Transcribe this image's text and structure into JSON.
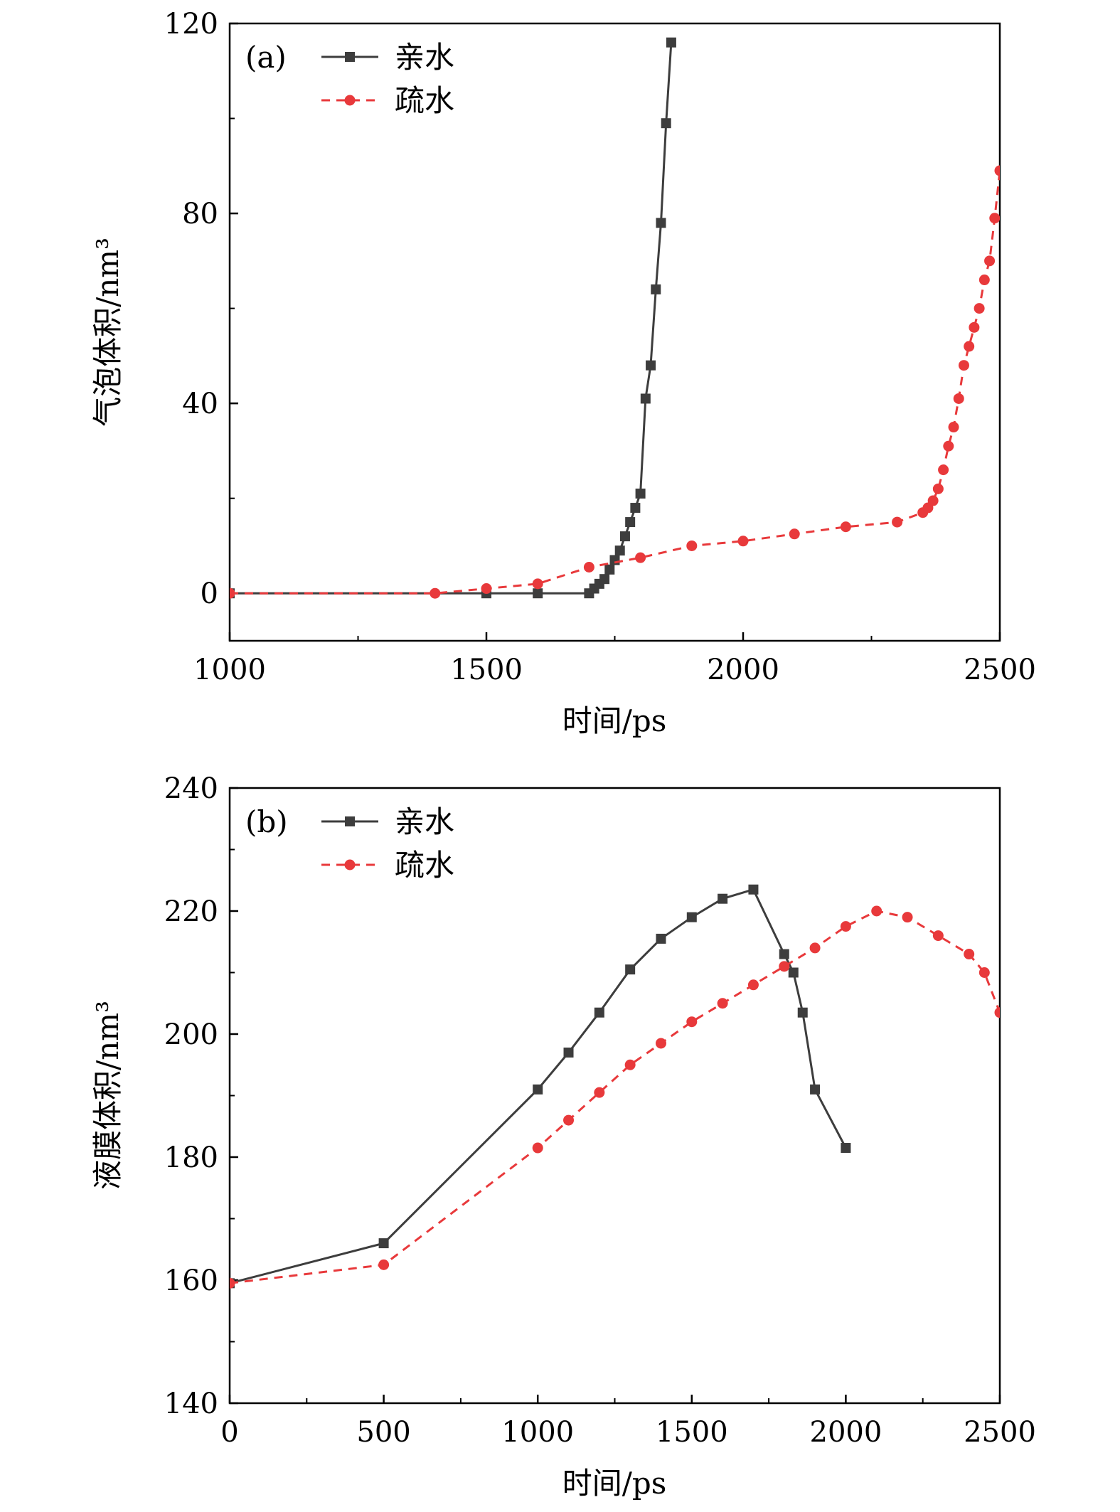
{
  "colors": {
    "hydrophilic": "#3d3d3d",
    "hydrophobic": "#e8393b"
  },
  "chart_data": [
    {
      "type": "line",
      "panel_label": "(a)",
      "xlabel": "时间/ps",
      "ylabel": "气泡体积/nm³",
      "xlim": [
        1000,
        2500
      ],
      "ylim": [
        -10,
        120
      ],
      "x_ticks": [
        1000,
        1500,
        2000,
        2500
      ],
      "x_minor": [
        1250,
        1750,
        2250
      ],
      "y_ticks": [
        0,
        40,
        80,
        120
      ],
      "y_minor": [
        20,
        60,
        100
      ],
      "x_tick_labels": [
        "1000",
        "1500",
        "2000",
        "2500"
      ],
      "y_tick_labels": [
        "0",
        "40",
        "80",
        "120"
      ],
      "legend_position": "top-left",
      "series": [
        {
          "name": "亲水",
          "marker": "square",
          "line": "solid",
          "x": [
            1000,
            1500,
            1600,
            1700,
            1710,
            1720,
            1730,
            1740,
            1750,
            1760,
            1770,
            1780,
            1790,
            1800,
            1810,
            1820,
            1830,
            1840,
            1850,
            1860
          ],
          "y": [
            0,
            0,
            0,
            0,
            1,
            2,
            3,
            5,
            7,
            9,
            12,
            15,
            18,
            21,
            41,
            48,
            64,
            78,
            99,
            116
          ]
        },
        {
          "name": "疏水",
          "marker": "circle",
          "line": "dashed",
          "x": [
            1000,
            1400,
            1500,
            1600,
            1700,
            1800,
            1900,
            2000,
            2100,
            2200,
            2300,
            2350,
            2360,
            2370,
            2380,
            2390,
            2400,
            2410,
            2420,
            2430,
            2440,
            2450,
            2460,
            2470,
            2480,
            2490,
            2500
          ],
          "y": [
            0,
            0,
            1,
            2,
            5.5,
            7.5,
            10,
            11,
            12.5,
            14,
            15,
            17,
            18,
            19.5,
            22,
            26,
            31,
            35,
            41,
            48,
            52,
            56,
            60,
            66,
            70,
            79,
            89
          ]
        }
      ]
    },
    {
      "type": "line",
      "panel_label": "(b)",
      "xlabel": "时间/ps",
      "ylabel": "液膜体积/nm³",
      "xlim": [
        0,
        2500
      ],
      "ylim": [
        140,
        240
      ],
      "x_ticks": [
        0,
        500,
        1000,
        1500,
        2000,
        2500
      ],
      "x_minor": [
        250,
        750,
        1250,
        1750,
        2250
      ],
      "y_ticks": [
        140,
        160,
        180,
        200,
        220,
        240
      ],
      "y_minor": [
        150,
        170,
        190,
        210,
        230
      ],
      "x_tick_labels": [
        "0",
        "500",
        "1000",
        "1500",
        "2000",
        "2500"
      ],
      "y_tick_labels": [
        "140",
        "160",
        "180",
        "200",
        "220",
        "240"
      ],
      "legend_position": "top-left",
      "series": [
        {
          "name": "亲水",
          "marker": "square",
          "line": "solid",
          "x": [
            0,
            500,
            1000,
            1100,
            1200,
            1300,
            1400,
            1500,
            1600,
            1700,
            1800,
            1830,
            1860,
            1900,
            2000
          ],
          "y": [
            159.5,
            166,
            191,
            197,
            203.5,
            210.5,
            215.5,
            219,
            222,
            223.5,
            213,
            210,
            203.5,
            191,
            181.5
          ]
        },
        {
          "name": "疏水",
          "marker": "circle",
          "line": "dashed",
          "x": [
            0,
            500,
            1000,
            1100,
            1200,
            1300,
            1400,
            1500,
            1600,
            1700,
            1800,
            1900,
            2000,
            2100,
            2200,
            2300,
            2400,
            2450,
            2500
          ],
          "y": [
            159.5,
            162.5,
            181.5,
            186,
            190.5,
            195,
            198.5,
            202,
            205,
            208,
            211,
            214,
            217.5,
            220,
            219,
            216,
            213,
            210,
            203.5
          ]
        }
      ]
    }
  ]
}
